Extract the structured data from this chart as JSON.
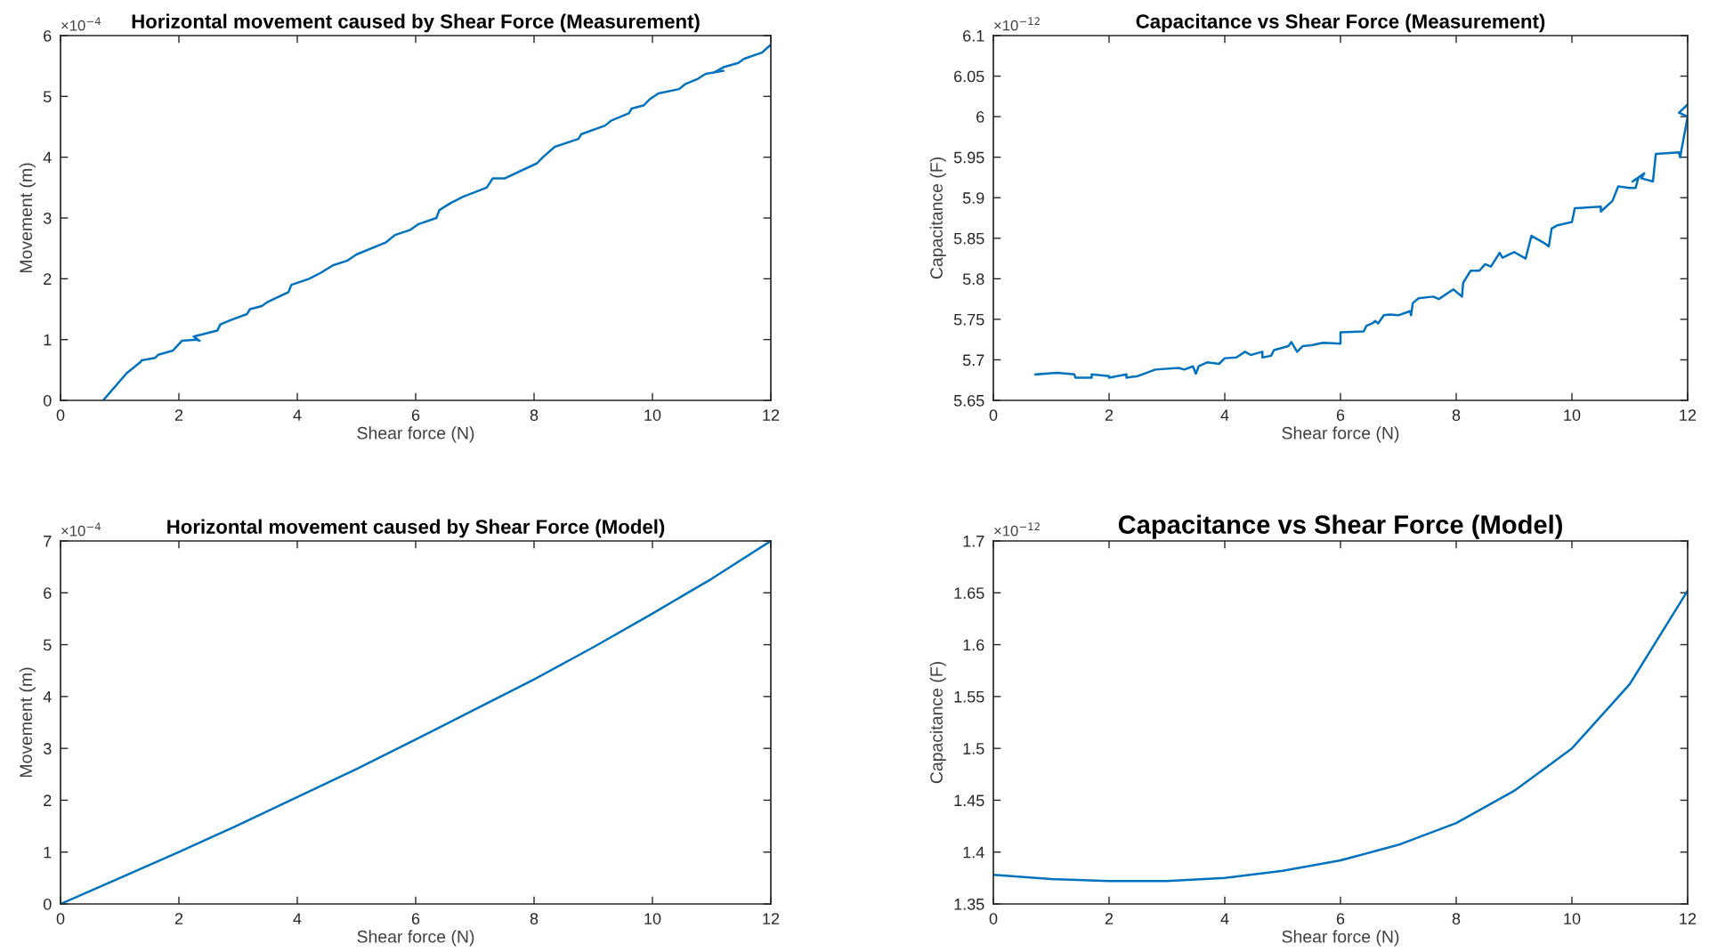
{
  "chart_data": [
    {
      "type": "line",
      "title": "Horizontal movement caused by Shear Force (Measurement)",
      "xlabel": "Shear force (N)",
      "ylabel": "Movement (m)",
      "annotations": [
        "×10$^{−4}$"
      ],
      "xlim": [
        0,
        12
      ],
      "xticks": [
        0,
        2,
        4,
        6,
        8,
        10,
        12
      ],
      "ylim": [
        0,
        6
      ],
      "yticks": [
        0,
        1,
        2,
        3,
        4,
        5,
        6
      ],
      "grid": false,
      "legend": false,
      "series": [
        {
          "color": "#0072bd",
          "x": [
            0.72,
            1.12,
            1.35,
            1.37,
            1.6,
            1.65,
            1.9,
            2.05,
            2.3,
            2.35,
            2.25,
            2.65,
            2.7,
            2.9,
            3.15,
            3.2,
            3.4,
            3.5,
            3.85,
            3.9,
            4.2,
            4.4,
            4.6,
            4.85,
            5.0,
            5.5,
            5.65,
            5.9,
            6.05,
            6.35,
            6.4,
            6.6,
            6.8,
            7.2,
            7.3,
            7.5,
            8.05,
            8.15,
            8.35,
            8.75,
            8.8,
            9.2,
            9.3,
            9.6,
            9.65,
            9.85,
            9.95,
            10.1,
            10.45,
            10.55,
            10.75,
            10.9,
            11.2,
            11.05,
            11.2,
            11.45,
            11.55,
            11.85,
            12.0
          ],
          "values": [
            0,
            0.45,
            0.63,
            0.66,
            0.7,
            0.75,
            0.82,
            0.98,
            1.0,
            0.98,
            1.05,
            1.15,
            1.25,
            1.33,
            1.42,
            1.5,
            1.55,
            1.62,
            1.78,
            1.9,
            2.0,
            2.1,
            2.22,
            2.3,
            2.4,
            2.6,
            2.72,
            2.8,
            2.9,
            3.0,
            3.13,
            3.25,
            3.35,
            3.5,
            3.65,
            3.65,
            3.9,
            4.0,
            4.17,
            4.3,
            4.38,
            4.52,
            4.6,
            4.72,
            4.8,
            4.85,
            4.95,
            5.05,
            5.12,
            5.2,
            5.28,
            5.37,
            5.42,
            5.4,
            5.48,
            5.55,
            5.62,
            5.72,
            5.85
          ]
        }
      ]
    },
    {
      "type": "line",
      "title": "Capacitance vs Shear Force (Measurement)",
      "xlabel": "Shear force (N)",
      "ylabel": "Capacitance (F)",
      "annotations": [
        "×10$^{−12}$"
      ],
      "xlim": [
        0,
        12
      ],
      "xticks": [
        0,
        2,
        4,
        6,
        8,
        10,
        12
      ],
      "ylim": [
        5.65,
        6.1
      ],
      "yticks": [
        5.65,
        5.7,
        5.75,
        5.8,
        5.85,
        5.9,
        5.95,
        6,
        6.05,
        6.1
      ],
      "grid": false,
      "legend": false,
      "series": [
        {
          "color": "#0072bd",
          "x": [
            0.73,
            1.1,
            1.4,
            1.42,
            1.7,
            1.7,
            2.0,
            2.0,
            2.3,
            2.3,
            2.5,
            2.8,
            3.2,
            3.3,
            3.45,
            3.5,
            3.55,
            3.7,
            3.9,
            4.0,
            4.2,
            4.35,
            4.45,
            4.55,
            4.65,
            4.65,
            4.8,
            4.85,
            5.1,
            5.15,
            5.25,
            5.35,
            5.5,
            5.7,
            6.0,
            6.0,
            6.4,
            6.45,
            6.55,
            6.6,
            6.65,
            6.75,
            6.85,
            7.0,
            7.2,
            7.22,
            7.25,
            7.35,
            7.6,
            7.7,
            7.95,
            8.1,
            8.12,
            8.25,
            8.4,
            8.5,
            8.6,
            8.75,
            8.8,
            9.0,
            9.2,
            9.3,
            9.5,
            9.6,
            9.65,
            9.75,
            10.0,
            10.05,
            10.5,
            10.5,
            10.7,
            10.8,
            11.0,
            11.1,
            11.15,
            11.05,
            11.25,
            11.2,
            11.4,
            11.45,
            11.85,
            11.87,
            12.0,
            11.85,
            12.0
          ],
          "values": [
            5.682,
            5.684,
            5.682,
            5.678,
            5.678,
            5.682,
            5.68,
            5.678,
            5.682,
            5.678,
            5.68,
            5.688,
            5.69,
            5.688,
            5.692,
            5.683,
            5.692,
            5.697,
            5.695,
            5.702,
            5.703,
            5.71,
            5.706,
            5.708,
            5.71,
            5.703,
            5.705,
            5.712,
            5.717,
            5.722,
            5.71,
            5.717,
            5.718,
            5.721,
            5.72,
            5.734,
            5.735,
            5.742,
            5.745,
            5.748,
            5.745,
            5.755,
            5.756,
            5.755,
            5.76,
            5.755,
            5.77,
            5.776,
            5.778,
            5.775,
            5.787,
            5.778,
            5.795,
            5.81,
            5.81,
            5.818,
            5.815,
            5.832,
            5.826,
            5.833,
            5.825,
            5.853,
            5.845,
            5.84,
            5.862,
            5.866,
            5.87,
            5.887,
            5.889,
            5.883,
            5.896,
            5.914,
            5.912,
            5.912,
            5.925,
            5.92,
            5.93,
            5.924,
            5.92,
            5.954,
            5.956,
            5.95,
            6.0,
            6.005,
            6.015
          ]
        }
      ]
    },
    {
      "type": "line",
      "title": "Horizontal movement caused by Shear Force (Model)",
      "xlabel": "Shear force (N)",
      "ylabel": "Movement (m)",
      "annotations": [
        "×10$^{−4}$"
      ],
      "xlim": [
        0,
        12
      ],
      "xticks": [
        0,
        2,
        4,
        6,
        8,
        10,
        12
      ],
      "ylim": [
        0,
        7
      ],
      "yticks": [
        0,
        1,
        2,
        3,
        4,
        5,
        6,
        7
      ],
      "grid": false,
      "legend": false,
      "series": [
        {
          "color": "#0072bd",
          "x": [
            0,
            1,
            2,
            3,
            4,
            5,
            6,
            7,
            8,
            9,
            10,
            11,
            12
          ],
          "values": [
            0,
            0.5,
            1.0,
            1.52,
            2.06,
            2.6,
            3.17,
            3.75,
            4.33,
            4.95,
            5.6,
            6.27,
            7.0
          ]
        }
      ]
    },
    {
      "type": "line",
      "title": "Capacitance vs Shear Force (Model)",
      "xlabel": "Shear force (N)",
      "ylabel": "Capacitance (F)",
      "annotations": [
        "×10$^{−12}$"
      ],
      "xlim": [
        0,
        12
      ],
      "xticks": [
        0,
        2,
        4,
        6,
        8,
        10,
        12
      ],
      "ylim": [
        1.35,
        1.7
      ],
      "yticks": [
        1.35,
        1.4,
        1.45,
        1.5,
        1.55,
        1.6,
        1.65,
        1.7
      ],
      "grid": false,
      "legend": false,
      "series": [
        {
          "color": "#0072bd",
          "x": [
            0,
            1,
            2,
            3,
            4,
            5,
            6,
            7,
            8,
            9,
            10,
            11,
            12
          ],
          "values": [
            1.378,
            1.374,
            1.372,
            1.372,
            1.375,
            1.382,
            1.392,
            1.407,
            1.428,
            1.459,
            1.5,
            1.562,
            1.652
          ]
        }
      ]
    }
  ]
}
